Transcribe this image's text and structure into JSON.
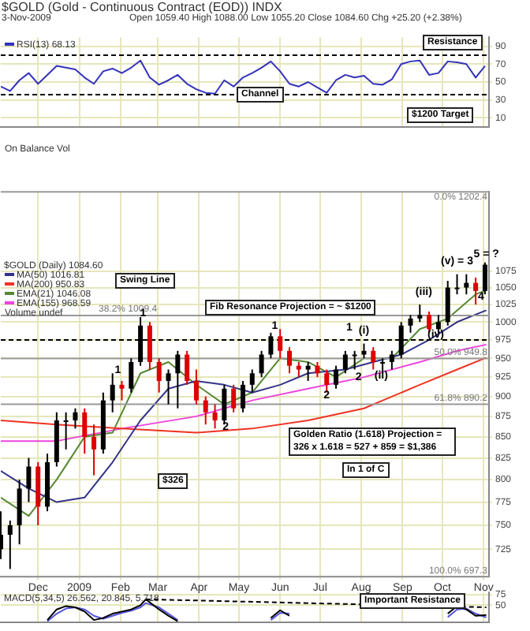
{
  "chart_data": [
    {
      "type": "line",
      "title": "$GOLD (Gold - Continuous Contract (EOD)) INDX",
      "subtitle": "3-Nov-2009",
      "xlim": [
        "2008-11-03",
        "2009-11-05"
      ],
      "xticks": [
        {
          "value": "2008-12-01",
          "label": null
        },
        {
          "value": "2009-01-01",
          "label": null
        },
        {
          "value": "2009-02-01",
          "label": null
        },
        {
          "value": "2009-03-01",
          "label": null
        },
        {
          "value": "2009-04-01",
          "label": null
        },
        {
          "value": "2009-05-01",
          "label": null
        },
        {
          "value": "2009-06-01",
          "label": null
        },
        {
          "value": "2009-07-01",
          "label": null
        },
        {
          "value": "2009-08-01",
          "label": null
        },
        {
          "value": "2009-09-01",
          "label": null
        },
        {
          "value": "2009-10-01",
          "label": null
        },
        {
          "value": "2009-11-01",
          "label": null
        }
      ],
      "ylim": [
        0,
        100
      ],
      "yticks": [
        10,
        30,
        50,
        70,
        90
      ],
      "tick_labels": "y",
      "grid": true,
      "legend": "top left",
      "series": [
        {
          "name": "RSI(13) 68.13",
          "color": "#3333bb",
          "x": [
            "2008-11-03",
            "2008-11-10",
            "2008-11-17",
            "2008-11-24",
            "2008-12-01",
            "2008-12-08",
            "2008-12-15",
            "2008-12-22",
            "2008-12-29",
            "2009-01-05",
            "2009-01-12",
            "2009-01-19",
            "2009-01-26",
            "2009-02-02",
            "2009-02-09",
            "2009-02-16",
            "2009-02-23",
            "2009-03-02",
            "2009-03-09",
            "2009-03-16",
            "2009-03-23",
            "2009-03-30",
            "2009-04-06",
            "2009-04-13",
            "2009-04-20",
            "2009-04-27",
            "2009-05-04",
            "2009-05-11",
            "2009-05-18",
            "2009-05-25",
            "2009-06-01",
            "2009-06-08",
            "2009-06-15",
            "2009-06-22",
            "2009-06-29",
            "2009-07-06",
            "2009-07-13",
            "2009-07-20",
            "2009-07-27",
            "2009-08-03",
            "2009-08-10",
            "2009-08-17",
            "2009-08-24",
            "2009-08-31",
            "2009-09-07",
            "2009-09-14",
            "2009-09-21",
            "2009-09-28",
            "2009-10-05",
            "2009-10-12",
            "2009-10-19",
            "2009-10-26",
            "2009-11-02"
          ],
          "values": [
            45,
            40,
            52,
            60,
            48,
            58,
            68,
            66,
            64,
            55,
            48,
            62,
            65,
            60,
            66,
            74,
            55,
            47,
            52,
            58,
            48,
            42,
            38,
            37,
            52,
            45,
            55,
            60,
            66,
            73,
            62,
            48,
            45,
            50,
            44,
            38,
            52,
            58,
            55,
            57,
            48,
            47,
            53,
            70,
            73,
            74,
            58,
            60,
            73,
            72,
            70,
            55,
            68
          ]
        }
      ],
      "ref_lines": [
        {
          "axis": "y",
          "value": 80,
          "line_style": "dashed",
          "color": "#000000"
        },
        {
          "axis": "y",
          "value": 36,
          "line_style": "dashed",
          "color": "#000000"
        }
      ],
      "annotations": [
        "Open 1059.40 High 1088.00 Low 1055.20 Close 1084.60 Chg +25.20 (+2.38%)",
        "Resistance",
        "Channel",
        "$1200 Target"
      ]
    },
    {
      "type": "other",
      "title": "On Balance Vol"
    },
    {
      "type": "candlestick",
      "log": "y",
      "grid": true,
      "legend": "top left",
      "legend_title": "$GOLD (Daily) 1084.60",
      "xlim": [
        "2008-11-03",
        "2009-11-05"
      ],
      "xticks": [
        {
          "value": "2008-12-01",
          "label": "Dec"
        },
        {
          "value": "2009-01-01",
          "label": "2009"
        },
        {
          "value": "2009-02-01",
          "label": "Feb"
        },
        {
          "value": "2009-03-01",
          "label": "Mar"
        },
        {
          "value": "2009-04-01",
          "label": "Apr"
        },
        {
          "value": "2009-05-01",
          "label": "May"
        },
        {
          "value": "2009-06-01",
          "label": "Jun"
        },
        {
          "value": "2009-07-01",
          "label": "Jul"
        },
        {
          "value": "2009-08-01",
          "label": "Aug"
        },
        {
          "value": "2009-09-01",
          "label": "Sep"
        },
        {
          "value": "2009-10-01",
          "label": "Oct"
        },
        {
          "value": "2009-11-01",
          "label": "Nov"
        }
      ],
      "ylim": [
        697.3,
        1202.4
      ],
      "yticks": [
        725,
        750,
        775,
        800,
        825,
        850,
        875,
        900,
        925,
        950,
        975,
        1000,
        1025,
        1050,
        1075
      ],
      "x": [
        "2008-11-03",
        "2008-11-10",
        "2008-11-17",
        "2008-11-24",
        "2008-12-01",
        "2008-12-08",
        "2008-12-15",
        "2008-12-22",
        "2008-12-29",
        "2009-01-05",
        "2009-01-12",
        "2009-01-19",
        "2009-01-26",
        "2009-02-02",
        "2009-02-09",
        "2009-02-16",
        "2009-02-23",
        "2009-03-02",
        "2009-03-09",
        "2009-03-16",
        "2009-03-23",
        "2009-03-30",
        "2009-04-06",
        "2009-04-13",
        "2009-04-20",
        "2009-04-27",
        "2009-05-04",
        "2009-05-11",
        "2009-05-18",
        "2009-05-25",
        "2009-06-01",
        "2009-06-08",
        "2009-06-15",
        "2009-06-22",
        "2009-06-29",
        "2009-07-06",
        "2009-07-13",
        "2009-07-20",
        "2009-07-27",
        "2009-08-03",
        "2009-08-10",
        "2009-08-17",
        "2009-08-24",
        "2009-08-31",
        "2009-09-07",
        "2009-09-14",
        "2009-09-21",
        "2009-09-28",
        "2009-10-05",
        "2009-10-12",
        "2009-10-19",
        "2009-10-26",
        "2009-11-02"
      ],
      "ohlc": [
        [
          725,
          765,
          715,
          740
        ],
        [
          740,
          755,
          705,
          750
        ],
        [
          750,
          800,
          730,
          790
        ],
        [
          790,
          825,
          775,
          815
        ],
        [
          815,
          820,
          750,
          770
        ],
        [
          770,
          830,
          765,
          820
        ],
        [
          820,
          880,
          815,
          870
        ],
        [
          870,
          880,
          835,
          870
        ],
        [
          870,
          885,
          860,
          880
        ],
        [
          880,
          885,
          830,
          850
        ],
        [
          850,
          865,
          805,
          835
        ],
        [
          835,
          905,
          830,
          895
        ],
        [
          895,
          930,
          880,
          915
        ],
        [
          915,
          920,
          895,
          910
        ],
        [
          910,
          950,
          905,
          945
        ],
        [
          945,
          1007,
          940,
          995
        ],
        [
          995,
          1000,
          935,
          945
        ],
        [
          945,
          950,
          905,
          920
        ],
        [
          920,
          935,
          890,
          930
        ],
        [
          930,
          960,
          885,
          955
        ],
        [
          955,
          960,
          915,
          920
        ],
        [
          920,
          935,
          890,
          895
        ],
        [
          895,
          900,
          865,
          880
        ],
        [
          880,
          890,
          860,
          870
        ],
        [
          870,
          915,
          865,
          910
        ],
        [
          910,
          915,
          880,
          885
        ],
        [
          885,
          920,
          880,
          915
        ],
        [
          915,
          935,
          905,
          930
        ],
        [
          930,
          960,
          925,
          955
        ],
        [
          955,
          985,
          950,
          980
        ],
        [
          980,
          990,
          950,
          960
        ],
        [
          960,
          965,
          930,
          940
        ],
        [
          940,
          945,
          925,
          935
        ],
        [
          935,
          945,
          920,
          940
        ],
        [
          940,
          945,
          925,
          930
        ],
        [
          930,
          935,
          905,
          915
        ],
        [
          915,
          940,
          910,
          935
        ],
        [
          935,
          960,
          930,
          955
        ],
        [
          955,
          960,
          935,
          955
        ],
        [
          955,
          970,
          950,
          960
        ],
        [
          960,
          965,
          935,
          945
        ],
        [
          945,
          950,
          930,
          945
        ],
        [
          945,
          960,
          935,
          955
        ],
        [
          955,
          1000,
          950,
          995
        ],
        [
          995,
          1010,
          985,
          1005
        ],
        [
          1005,
          1025,
          1000,
          1010
        ],
        [
          1010,
          1015,
          985,
          990
        ],
        [
          990,
          1010,
          985,
          1000
        ],
        [
          1000,
          1060,
          995,
          1050
        ],
        [
          1050,
          1070,
          1040,
          1050
        ],
        [
          1050,
          1070,
          1040,
          1057
        ],
        [
          1057,
          1065,
          1025,
          1045
        ],
        [
          1045,
          1088,
          1040,
          1084.6
        ]
      ],
      "colors": [
        "#000000",
        "#000000",
        "#000000",
        "#000000",
        "#dd0000",
        "#000000",
        "#000000",
        "#000000",
        "#000000",
        "#dd0000",
        "#dd0000",
        "#000000",
        "#000000",
        "#dd0000",
        "#000000",
        "#000000",
        "#dd0000",
        "#dd0000",
        "#000000",
        "#000000",
        "#dd0000",
        "#dd0000",
        "#dd0000",
        "#dd0000",
        "#000000",
        "#dd0000",
        "#000000",
        "#000000",
        "#000000",
        "#000000",
        "#dd0000",
        "#dd0000",
        "#dd0000",
        "#000000",
        "#dd0000",
        "#dd0000",
        "#000000",
        "#000000",
        "#000000",
        "#000000",
        "#dd0000",
        "#000000",
        "#000000",
        "#000000",
        "#000000",
        "#000000",
        "#dd0000",
        "#000000",
        "#000000",
        "#000000",
        "#000000",
        "#dd0000",
        "#000000"
      ],
      "series": [
        {
          "name": "MA(50) 1016.81",
          "type": "line",
          "color": "#333388",
          "x": [
            "2008-11-03",
            "2008-11-24",
            "2008-12-15",
            "2009-01-05",
            "2009-01-26",
            "2009-02-16",
            "2009-03-09",
            "2009-03-30",
            "2009-04-20",
            "2009-05-11",
            "2009-06-01",
            "2009-06-22",
            "2009-07-20",
            "2009-08-10",
            "2009-08-31",
            "2009-09-21",
            "2009-10-12",
            "2009-11-03"
          ],
          "values": [
            810,
            790,
            775,
            780,
            820,
            870,
            910,
            920,
            915,
            905,
            915,
            930,
            935,
            945,
            955,
            975,
            1000,
            1016.81
          ]
        },
        {
          "name": "MA(200) 950.83",
          "type": "line",
          "color": "#ee3322",
          "x": [
            "2008-11-03",
            "2008-12-15",
            "2009-02-02",
            "2009-03-30",
            "2009-05-11",
            "2009-06-22",
            "2009-08-03",
            "2009-09-14",
            "2009-10-12",
            "2009-11-03"
          ],
          "values": [
            870,
            865,
            860,
            855,
            860,
            870,
            885,
            915,
            935,
            950.83
          ]
        },
        {
          "name": "EMA(21) 1046.08",
          "type": "line",
          "color": "#558833",
          "x": [
            "2008-11-03",
            "2008-11-24",
            "2008-12-15",
            "2009-01-05",
            "2009-01-26",
            "2009-02-16",
            "2009-03-09",
            "2009-03-30",
            "2009-04-20",
            "2009-05-11",
            "2009-06-01",
            "2009-06-22",
            "2009-07-13",
            "2009-08-03",
            "2009-08-24",
            "2009-09-14",
            "2009-10-05",
            "2009-10-26",
            "2009-11-03"
          ],
          "values": [
            780,
            760,
            800,
            850,
            855,
            930,
            945,
            915,
            890,
            905,
            950,
            945,
            925,
            950,
            950,
            990,
            1005,
            1040,
            1046.08
          ]
        },
        {
          "name": "EMA(155) 968.59",
          "type": "line",
          "color": "#ee44dd",
          "x": [
            "2008-11-03",
            "2008-12-15",
            "2009-02-02",
            "2009-03-30",
            "2009-05-11",
            "2009-06-22",
            "2009-08-03",
            "2009-09-14",
            "2009-10-12",
            "2009-11-03"
          ],
          "values": [
            845,
            845,
            860,
            875,
            895,
            910,
            925,
            945,
            960,
            968.59
          ]
        }
      ],
      "ref_lines": [
        {
          "axis": "y",
          "value": 1202.4,
          "label": "0.0% 1202.4",
          "color": "#999999"
        },
        {
          "axis": "y",
          "value": 1009.4,
          "label": "38.2% 1009.4",
          "color": "#999999"
        },
        {
          "axis": "y",
          "value": 949.8,
          "label": "50.0% 949.8",
          "color": "#999999"
        },
        {
          "axis": "y",
          "value": 890.2,
          "label": "61.8% 890.2",
          "color": "#999999"
        },
        {
          "axis": "y",
          "value": 697.3,
          "label": "100.0% 697.3",
          "color": "#999999"
        },
        {
          "axis": "y",
          "value": 975,
          "line_style": "dashed",
          "color": "#000000"
        }
      ],
      "annotations": [
        "Volume undef",
        "Swing Line",
        "Fib Resonance Projection = ~ $1200",
        "Golden Ratio (1.618) Projection = 326 x 1.618 = 527 + 859 = $1,386",
        "In 1 of C",
        "$326",
        {
          "text": "1",
          "x": "2009-01-30",
          "y": 927
        },
        {
          "text": "1",
          "x": "2009-02-18",
          "y": 1005
        },
        {
          "text": "2",
          "x": "2009-04-21",
          "y": 855
        },
        {
          "text": "1",
          "x": "2009-05-28",
          "y": 987
        },
        {
          "text": "2",
          "x": "2009-07-06",
          "y": 895
        },
        {
          "text": "1",
          "x": "2009-07-23",
          "y": 985
        },
        {
          "text": "2",
          "x": "2009-07-30",
          "y": 918
        },
        {
          "text": "(i)",
          "x": "2009-08-03",
          "y": 980
        },
        {
          "text": "(ii)",
          "x": "2009-08-16",
          "y": 920
        },
        {
          "text": "(iii)",
          "x": "2009-09-17",
          "y": 1035
        },
        {
          "text": "(iv)",
          "x": "2009-09-26",
          "y": 975
        },
        {
          "text": "(v) = 3",
          "x": "2009-10-12",
          "y": 1082
        },
        {
          "text": "4",
          "x": "2009-10-30",
          "y": 1028
        },
        {
          "text": "5 = ?",
          "x": "2009-11-03",
          "y": 1092
        }
      ]
    },
    {
      "type": "line",
      "title": "MACD(5,34,5) 26.562, 20.845, 5.718",
      "xlim": [
        "2008-11-03",
        "2009-11-05"
      ],
      "xticks": [
        {
          "value": "2008-12-01",
          "label": null
        },
        {
          "value": "2009-01-01",
          "label": null
        },
        {
          "value": "2009-02-01",
          "label": null
        },
        {
          "value": "2009-03-01",
          "label": null
        },
        {
          "value": "2009-04-01",
          "label": null
        },
        {
          "value": "2009-05-01",
          "label": null
        },
        {
          "value": "2009-06-01",
          "label": null
        },
        {
          "value": "2009-07-01",
          "label": null
        },
        {
          "value": "2009-08-01",
          "label": null
        },
        {
          "value": "2009-09-01",
          "label": null
        },
        {
          "value": "2009-10-01",
          "label": null
        },
        {
          "value": "2009-11-01",
          "label": null
        }
      ],
      "ylim": [
        10,
        80
      ],
      "yticks": [
        50,
        75
      ],
      "tick_labels": "y",
      "grid": true,
      "series": [
        {
          "type": "line",
          "color": "#000000",
          "x": [
            "2008-12-08",
            "2008-12-15",
            "2008-12-22",
            "2008-12-29",
            "2009-01-05",
            "2009-01-12",
            "2009-01-19",
            "2009-01-26",
            "2009-02-02",
            "2009-02-09",
            "2009-02-16",
            "2009-02-20",
            "2009-03-02",
            "2009-03-09",
            "2009-03-16",
            "2009-04-20",
            "2009-05-25",
            "2009-06-01",
            "2009-06-08",
            "2009-07-20",
            "2009-10-05",
            "2009-10-12",
            "2009-10-19",
            "2009-10-26",
            "2009-11-03"
          ],
          "values": [
            15,
            40,
            48,
            45,
            35,
            15,
            20,
            30,
            35,
            40,
            50,
            64,
            40,
            25,
            12,
            null,
            20,
            38,
            25,
            null,
            30,
            48,
            40,
            25,
            27
          ]
        },
        {
          "type": "line",
          "color": "#5555dd",
          "x": [
            "2008-12-08",
            "2008-12-15",
            "2008-12-22",
            "2008-12-29",
            "2009-01-05",
            "2009-01-12",
            "2009-01-19",
            "2009-01-26",
            "2009-02-02",
            "2009-02-09",
            "2009-02-16",
            "2009-02-20",
            "2009-03-02",
            "2009-03-09",
            "2009-03-16",
            "2009-04-20",
            "2009-05-25",
            "2009-06-01",
            "2009-06-08",
            "2009-07-20",
            "2009-10-05",
            "2009-10-12",
            "2009-10-19",
            "2009-10-26",
            "2009-11-03"
          ],
          "values": [
            12,
            30,
            42,
            45,
            40,
            25,
            18,
            25,
            32,
            37,
            45,
            55,
            45,
            30,
            15,
            null,
            15,
            32,
            30,
            null,
            22,
            40,
            42,
            30,
            21
          ]
        },
        {
          "type": "line",
          "line_style": "dashed",
          "color": "#000000",
          "x": [
            "2009-02-20",
            "2009-11-03"
          ],
          "values": [
            64,
            45
          ]
        }
      ],
      "annotations": [
        "Important Resistance"
      ]
    }
  ]
}
